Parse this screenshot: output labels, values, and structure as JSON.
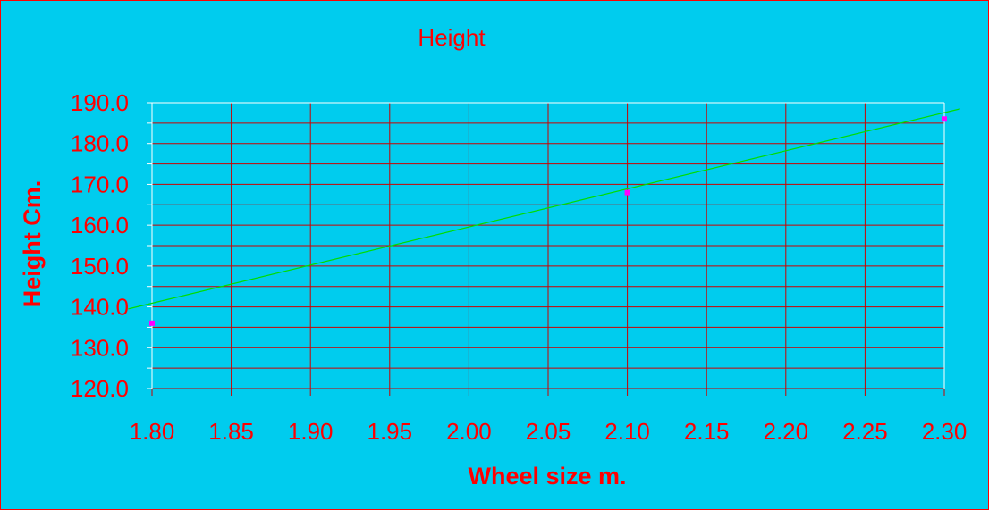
{
  "chart_data": {
    "type": "scatter",
    "title": "Height",
    "xlabel": "Wheel size m.",
    "ylabel": "Height Cm.",
    "xlim": [
      1.8,
      2.3
    ],
    "ylim": [
      120.0,
      190.0
    ],
    "x_ticks": [
      "1.80",
      "1.85",
      "1.90",
      "1.95",
      "2.00",
      "2.05",
      "2.10",
      "2.15",
      "2.20",
      "2.25",
      "2.30"
    ],
    "y_ticks": [
      "120.0",
      "130.0",
      "140.0",
      "150.0",
      "160.0",
      "170.0",
      "180.0",
      "190.0"
    ],
    "grid": true,
    "series": [
      {
        "points": [
          {
            "x": 1.8,
            "y": 136.0
          },
          {
            "x": 2.1,
            "y": 168.0
          },
          {
            "x": 2.3,
            "y": 186.0
          }
        ],
        "color": "#FF00FF"
      }
    ],
    "trendline": {
      "type": "linear",
      "color": "#00DD00",
      "x_range": [
        1.785,
        2.31
      ],
      "y_range": [
        139.5,
        188.5
      ]
    },
    "colors": {
      "background": "#00CCEE",
      "text": "#FF0000",
      "grid": "#CC0000"
    }
  }
}
